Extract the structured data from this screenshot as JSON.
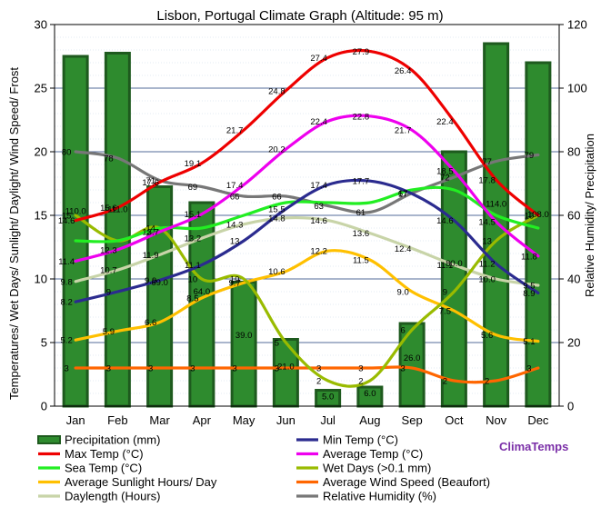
{
  "chart_data": {
    "type": "bar",
    "title": "Lisbon, Portugal Climate Graph (Altitude: 95 m)",
    "ylabel": "Temperatures/ Wet Days/ Sunlight/ Daylight/ Wind Speed/ Frost",
    "y2label": "Relative Humidity/ Precipitation",
    "ylim": [
      0,
      30
    ],
    "y2lim": [
      0,
      120
    ],
    "yticks": [
      "0",
      "5",
      "10",
      "15",
      "20",
      "25",
      "30"
    ],
    "y2ticks": [
      "0",
      "20",
      "40",
      "60",
      "80",
      "100",
      "120"
    ],
    "categories": [
      "Jan",
      "Feb",
      "Mar",
      "Apr",
      "May",
      "Jun",
      "Jul",
      "Aug",
      "Sep",
      "Oct",
      "Nov",
      "Dec"
    ],
    "grid": true,
    "legend_position": "bottom",
    "brand": "ClimaTemps",
    "series": [
      {
        "name": "Precipitation (mm)",
        "kind": "bar",
        "axis": "right",
        "color": "#2e8b2e",
        "values": [
          110.0,
          111.0,
          69.0,
          64.0,
          39.0,
          21.0,
          5.0,
          6.0,
          26.0,
          80.0,
          114.0,
          108.0
        ],
        "labels": [
          "110.0",
          "111.0",
          "69.0",
          "64.0",
          "39.0",
          "21.0",
          "5.0",
          "6.0",
          "26.0",
          "80.0",
          "114.0",
          "108.0"
        ]
      },
      {
        "name": "Min Temp (°C)",
        "kind": "line",
        "axis": "left",
        "color": "#2b2b8f",
        "values": [
          8.2,
          9,
          9.9,
          11.1,
          13,
          15.5,
          17.4,
          17.7,
          16.7,
          14.6,
          11.2,
          8.9
        ],
        "labels": [
          "8.2",
          "9",
          "9.9",
          "11.1",
          "13",
          "15.5",
          "17.4",
          "17.7",
          "17",
          "14.6",
          "11.2",
          "8.9"
        ]
      },
      {
        "name": "Max Temp (°C)",
        "kind": "line",
        "axis": "left",
        "color": "#ee0000",
        "values": [
          14.6,
          15.6,
          17.6,
          19.1,
          21.7,
          24.8,
          27.4,
          27.9,
          26.4,
          22.4,
          17.8,
          15
        ],
        "labels": [
          "14.6",
          "15.6",
          "17.6",
          "19.1",
          "21.7",
          "24.8",
          "27.4",
          "27.9",
          "26.4",
          "22.4",
          "17.8",
          "15"
        ]
      },
      {
        "name": "Average Temp (°C)",
        "kind": "line",
        "axis": "left",
        "color": "#ee00ee",
        "values": [
          11.4,
          12.3,
          13.7,
          15.1,
          17.4,
          20.2,
          22.4,
          22.8,
          21.7,
          18.5,
          14.5,
          11.8
        ],
        "labels": [
          "11.4",
          "12.3",
          "13.7",
          "15.1",
          "17.4",
          "20.2",
          "22.4",
          "22.8",
          "21.7",
          "18.5",
          "14.5",
          "11.8"
        ]
      },
      {
        "name": "Sea Temp (°C)",
        "kind": "line",
        "axis": "left",
        "color": "#22ee22",
        "values": [
          13,
          13,
          14,
          14,
          15,
          16,
          16,
          16,
          17,
          17,
          15,
          14
        ],
        "labels": [
          "",
          "",
          "",
          "",
          "",
          "",
          "",
          "",
          "",
          "",
          "",
          ""
        ]
      },
      {
        "name": "Wet Days (>0.1 mm)",
        "kind": "line",
        "axis": "left",
        "color": "#99bb00",
        "values": [
          15,
          13,
          14,
          10,
          10,
          5,
          2,
          2,
          6,
          9,
          13,
          15
        ],
        "labels": [
          "15",
          "",
          "14",
          "10",
          "10",
          "5",
          "2",
          "2",
          "6",
          "9",
          "13",
          ""
        ]
      },
      {
        "name": "Average Sunlight Hours/ Day",
        "kind": "line",
        "axis": "left",
        "color": "#ffc000",
        "values": [
          5.2,
          5.9,
          6.6,
          8.5,
          9.7,
          10.6,
          12.2,
          11.5,
          9.0,
          7.5,
          5.6,
          5.1
        ],
        "labels": [
          "5.2",
          "5.9",
          "6.6",
          "8.5",
          "9.7",
          "10.6",
          "12.2",
          "11.5",
          "9.0",
          "7.5",
          "5.6",
          "5.1"
        ]
      },
      {
        "name": "Average Wind Speed (Beaufort)",
        "kind": "line",
        "axis": "left",
        "color": "#ff6600",
        "values": [
          3,
          3,
          3,
          3,
          3,
          3,
          3,
          3,
          3,
          2,
          2,
          3
        ],
        "labels": [
          "3",
          "3",
          "3",
          "3",
          "3",
          "3",
          "3",
          "3",
          "3",
          "2",
          "2",
          "3"
        ]
      },
      {
        "name": "Daylength (Hours)",
        "kind": "line",
        "axis": "left",
        "color": "#c8d4a8",
        "values": [
          9.8,
          10.7,
          11.9,
          13.2,
          14.3,
          14.8,
          14.6,
          13.6,
          12.4,
          11.1,
          10.0,
          9.5
        ],
        "labels": [
          "9.8",
          "10.7",
          "11.9",
          "13.2",
          "14.3",
          "14.8",
          "14.6",
          "13.6",
          "12.4",
          "11.1",
          "10.0",
          "9.5"
        ]
      },
      {
        "name": "Relative Humidity (%)",
        "kind": "line",
        "axis": "right",
        "color": "#777777",
        "values": [
          80,
          78,
          71,
          69,
          66,
          66,
          63,
          61,
          67,
          72,
          77,
          79
        ],
        "labels": [
          "80",
          "78",
          "71",
          "69",
          "66",
          "66",
          "63",
          "61",
          "67",
          "72",
          "77",
          "79"
        ]
      }
    ]
  }
}
